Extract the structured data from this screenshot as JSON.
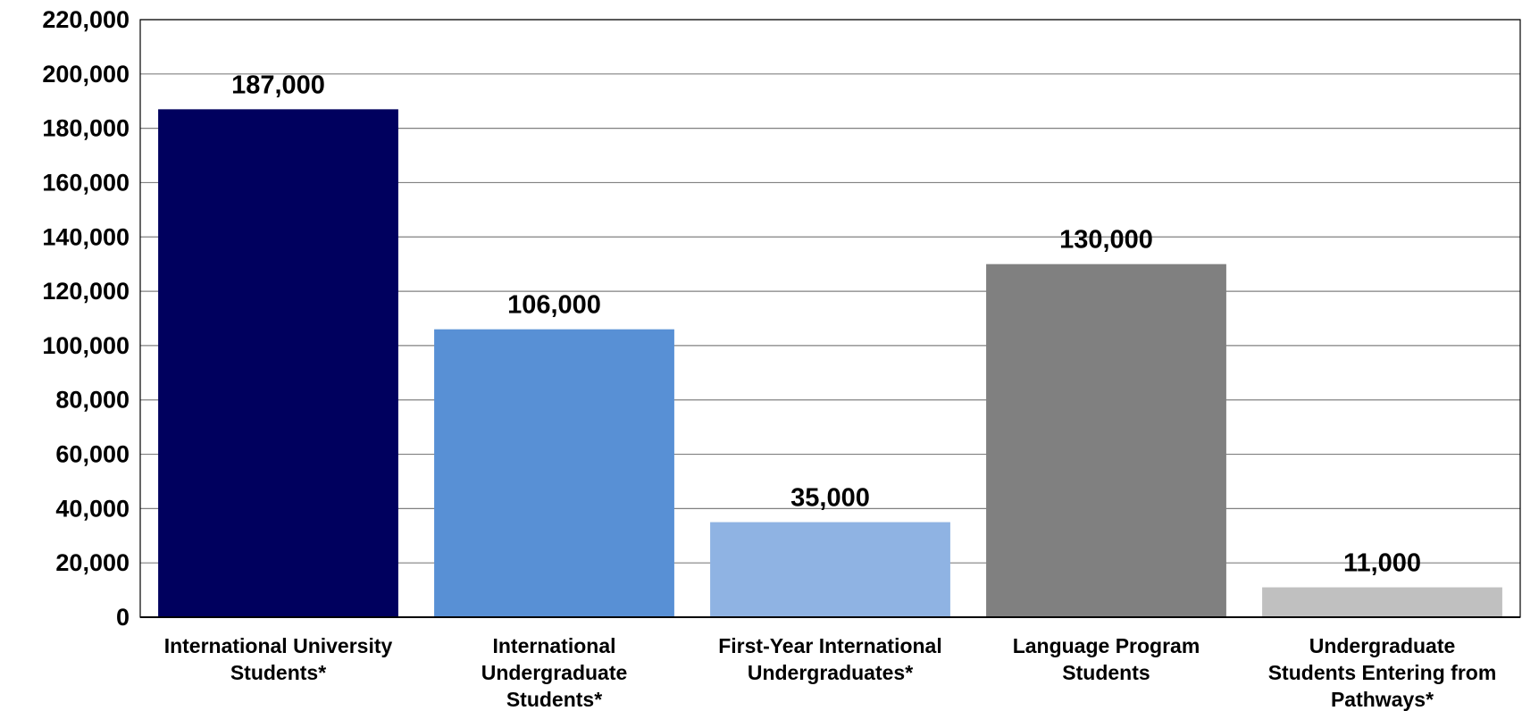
{
  "chart_data": {
    "type": "bar",
    "categories": [
      "International University Students*",
      "International Undergraduate Students*",
      "First-Year International Undergraduates*",
      "Language Program Students",
      "Undergraduate Students Entering from Pathways*"
    ],
    "category_lines": [
      [
        "International University",
        "Students*"
      ],
      [
        "International",
        "Undergraduate",
        "Students*"
      ],
      [
        "First-Year International",
        "Undergraduates*"
      ],
      [
        "Language Program",
        "Students"
      ],
      [
        "Undergraduate",
        "Students Entering from",
        "Pathways*"
      ]
    ],
    "values": [
      187000,
      106000,
      35000,
      130000,
      11000
    ],
    "data_labels": [
      "187,000",
      "106,000",
      "35,000",
      "130,000",
      "11,000"
    ],
    "bar_colors": [
      "#00005e",
      "#5890d5",
      "#8fb3e3",
      "#808080",
      "#c0c0c0"
    ],
    "ylim": [
      0,
      220000
    ],
    "yticks": [
      0,
      20000,
      40000,
      60000,
      80000,
      100000,
      120000,
      140000,
      160000,
      180000,
      200000,
      220000
    ],
    "ytick_labels": [
      "0",
      "20,000",
      "40,000",
      "60,000",
      "80,000",
      "100,000",
      "120,000",
      "140,000",
      "160,000",
      "180,000",
      "200,000",
      "220,000"
    ],
    "grid": true,
    "gridline_color": "#808080",
    "title": "",
    "xlabel": "",
    "ylabel": ""
  }
}
